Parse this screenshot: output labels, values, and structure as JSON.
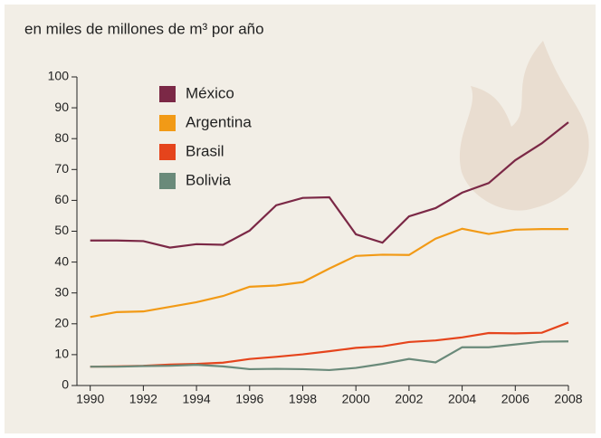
{
  "chart_data": {
    "type": "line",
    "title": "en miles de millones de m³ por año",
    "x": [
      1990,
      1991,
      1992,
      1993,
      1994,
      1995,
      1996,
      1997,
      1998,
      1999,
      2000,
      2001,
      2002,
      2003,
      2004,
      2005,
      2006,
      2007,
      2008
    ],
    "series": [
      {
        "name": "México",
        "color": "#7b2846",
        "values": [
          47,
          47,
          46.8,
          44.7,
          45.8,
          45.6,
          50.2,
          58.4,
          60.8,
          61,
          49,
          46.3,
          54.8,
          57.5,
          62.5,
          65.6,
          73,
          78.5,
          85.3
        ]
      },
      {
        "name": "Argentina",
        "color": "#f29a16",
        "values": [
          22.2,
          23.8,
          24,
          25.5,
          27,
          29,
          32,
          32.4,
          33.5,
          37.9,
          42,
          42.4,
          42.3,
          47.6,
          50.8,
          49.1,
          50.5,
          50.7,
          50.7
        ]
      },
      {
        "name": "Brasil",
        "color": "#e5441c",
        "values": [
          6.1,
          6.2,
          6.4,
          6.8,
          7,
          7.4,
          8.6,
          9.3,
          10.1,
          11.1,
          12.2,
          12.7,
          14.1,
          14.6,
          15.6,
          17,
          16.9,
          17.1,
          20.4
        ]
      },
      {
        "name": "Bolivia",
        "color": "#6a8a7a",
        "values": [
          6.1,
          6.1,
          6.3,
          6.4,
          6.7,
          6.2,
          5.3,
          5.4,
          5.3,
          5,
          5.7,
          7,
          8.6,
          7.5,
          12.4,
          12.4,
          13.3,
          14.2,
          14.3
        ]
      }
    ],
    "xlim": [
      1989.5,
      2008
    ],
    "xticks": [
      1990,
      1992,
      1994,
      1996,
      1998,
      2000,
      2002,
      2004,
      2006,
      2008
    ],
    "ylim": [
      0,
      100
    ],
    "yticks": [
      0,
      10,
      20,
      30,
      40,
      50,
      60,
      70,
      80,
      90,
      100
    ],
    "grid": false,
    "legend": "top-left"
  }
}
